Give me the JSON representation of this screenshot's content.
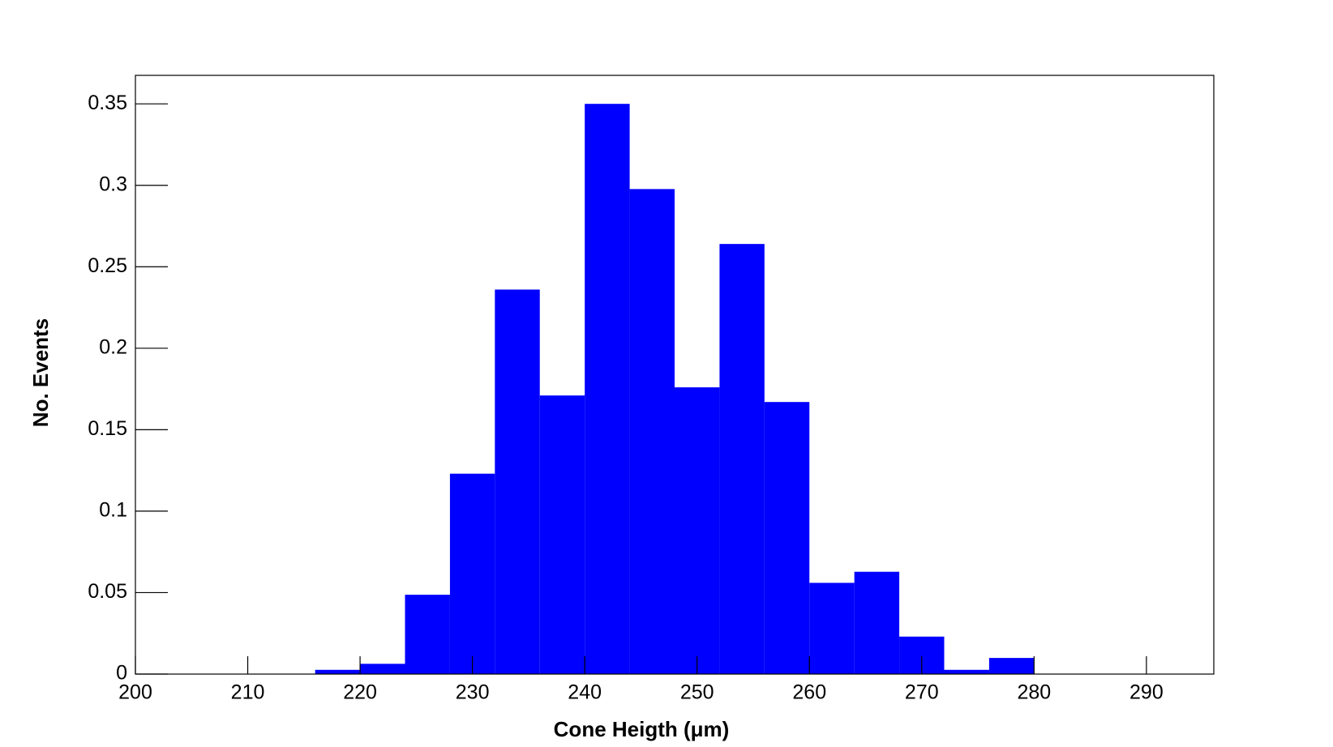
{
  "chart_data": {
    "type": "histogram",
    "x_label": "Cone Heigth (μm)",
    "y_label": "No. Events",
    "bins": [
      216,
      220,
      224,
      228,
      232,
      236,
      240,
      244,
      248,
      252,
      256,
      260,
      264,
      268,
      272,
      276,
      280
    ],
    "values": [
      0.0026,
      0.0063,
      0.0487,
      0.123,
      0.236,
      0.171,
      0.35,
      0.2977,
      0.176,
      0.264,
      0.167,
      0.056,
      0.0628,
      0.023,
      0.0026,
      0.0099
    ],
    "color": "#0000ff",
    "xlim": [
      200,
      296
    ],
    "xticks": [
      200,
      210,
      220,
      230,
      240,
      250,
      260,
      270,
      280,
      290
    ],
    "ylim": [
      0,
      0.3675
    ],
    "yticks": [
      0,
      0.05,
      0.1,
      0.15,
      0.2,
      0.25,
      0.3,
      0.35
    ]
  }
}
